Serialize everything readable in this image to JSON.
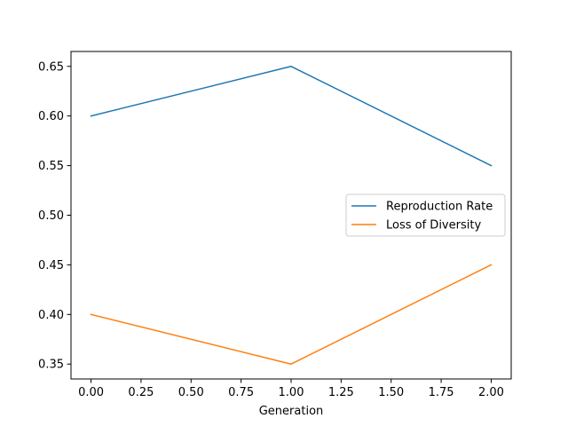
{
  "chart_data": {
    "type": "line",
    "title": "",
    "xlabel": "Generation",
    "ylabel": "",
    "xlim": [
      -0.1,
      2.1
    ],
    "ylim": [
      0.335,
      0.665
    ],
    "x_ticks": [
      0.0,
      0.25,
      0.5,
      0.75,
      1.0,
      1.25,
      1.5,
      1.75,
      2.0
    ],
    "x_tick_labels": [
      "0.00",
      "0.25",
      "0.50",
      "0.75",
      "1.00",
      "1.25",
      "1.50",
      "1.75",
      "2.00"
    ],
    "y_ticks": [
      0.35,
      0.4,
      0.45,
      0.5,
      0.55,
      0.6,
      0.65
    ],
    "y_tick_labels": [
      "0.35",
      "0.40",
      "0.45",
      "0.50",
      "0.55",
      "0.60",
      "0.65"
    ],
    "grid": false,
    "legend_position": "center-right",
    "x": [
      0,
      1,
      2
    ],
    "series": [
      {
        "name": "Reproduction Rate",
        "color": "#1f77b4",
        "values": [
          0.6,
          0.65,
          0.55
        ]
      },
      {
        "name": "Loss of Diversity",
        "color": "#ff7f0e",
        "values": [
          0.4,
          0.35,
          0.45
        ]
      }
    ]
  }
}
